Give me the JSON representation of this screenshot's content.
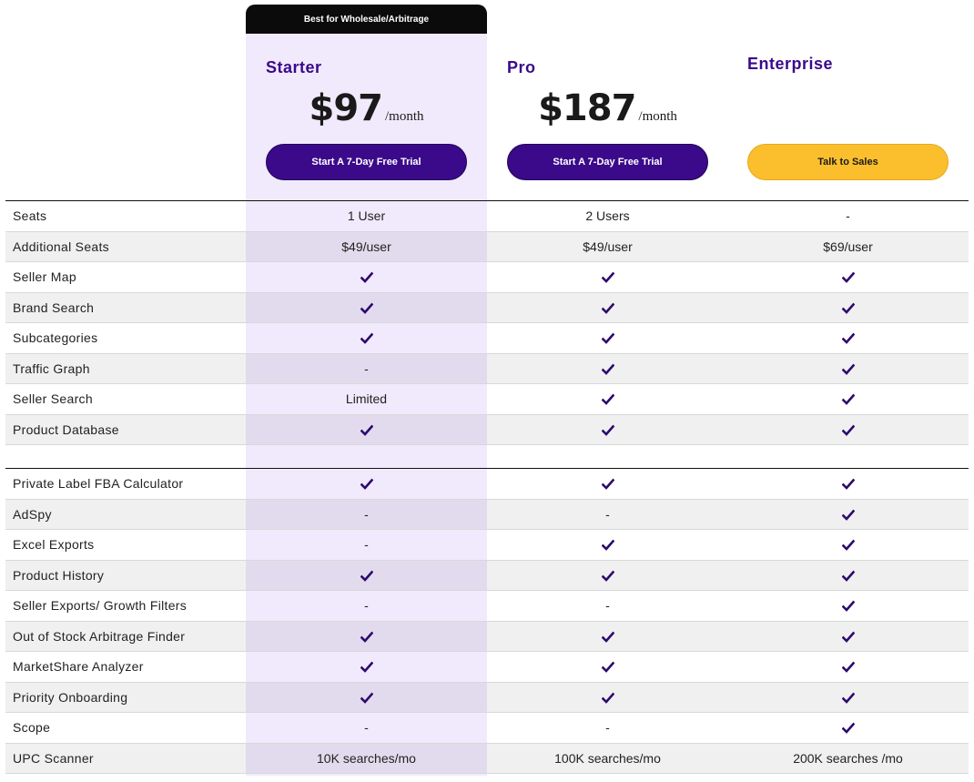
{
  "badge": "Best for Wholesale/Arbitrage",
  "plans": [
    {
      "name": "Starter",
      "price": "$97",
      "period": "/month",
      "cta": "Start A 7-Day Free Trial"
    },
    {
      "name": "Pro",
      "price": "$187",
      "period": "/month",
      "cta": "Start A 7-Day Free Trial"
    },
    {
      "name": "Enterprise",
      "cta": "Talk to Sales"
    }
  ],
  "colors": {
    "accent": "#3a0a8a",
    "highlight": "#f1e9fc",
    "sales": "#fbbf2d"
  },
  "section1": [
    {
      "feature": "Seats",
      "values": [
        "1 User",
        "2 Users",
        "-"
      ]
    },
    {
      "feature": "Additional Seats",
      "values": [
        "$49/user",
        "$49/user",
        "$69/user"
      ]
    },
    {
      "feature": "Seller Map",
      "values": [
        "check",
        "check",
        "check"
      ]
    },
    {
      "feature": "Brand Search",
      "values": [
        "check",
        "check",
        "check"
      ]
    },
    {
      "feature": "Subcategories",
      "values": [
        "check",
        "check",
        "check"
      ]
    },
    {
      "feature": "Traffic Graph",
      "values": [
        "-",
        "check",
        "check"
      ]
    },
    {
      "feature": "Seller Search",
      "values": [
        "Limited",
        "check",
        "check"
      ]
    },
    {
      "feature": "Product Database",
      "values": [
        "check",
        "check",
        "check"
      ]
    }
  ],
  "section2": [
    {
      "feature": "Private Label FBA Calculator",
      "values": [
        "check",
        "check",
        "check"
      ]
    },
    {
      "feature": "AdSpy",
      "values": [
        "-",
        "-",
        "check"
      ]
    },
    {
      "feature": "Excel Exports",
      "values": [
        "-",
        "check",
        "check"
      ]
    },
    {
      "feature": "Product History",
      "values": [
        "check",
        "check",
        "check"
      ]
    },
    {
      "feature": "Seller Exports/ Growth Filters",
      "values": [
        "-",
        "-",
        "check"
      ]
    },
    {
      "feature": "Out of Stock Arbitrage Finder",
      "values": [
        "check",
        "check",
        "check"
      ]
    },
    {
      "feature": "MarketShare Analyzer",
      "values": [
        "check",
        "check",
        "check"
      ]
    },
    {
      "feature": "Priority Onboarding",
      "values": [
        "check",
        "check",
        "check"
      ]
    },
    {
      "feature": "Scope",
      "values": [
        "-",
        "-",
        "check"
      ]
    },
    {
      "feature": "UPC Scanner",
      "values": [
        "10K searches/mo",
        "100K searches/mo",
        "200K searches /mo"
      ]
    }
  ]
}
